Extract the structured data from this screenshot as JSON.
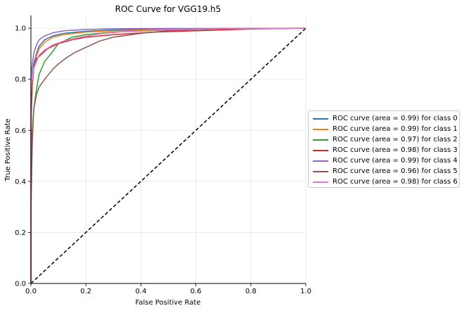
{
  "chart_data": {
    "type": "line",
    "title": "ROC Curve for VGG19.h5",
    "xlabel": "False Positive Rate",
    "ylabel": "True Positive Rate",
    "xlim": [
      0,
      1
    ],
    "ylim": [
      0,
      1.05
    ],
    "x_ticks": [
      "0.0",
      "0.2",
      "0.4",
      "0.6",
      "0.8",
      "1.0"
    ],
    "y_ticks": [
      "0.0",
      "0.2",
      "0.4",
      "0.6",
      "0.8",
      "1.0"
    ],
    "grid": true,
    "legend_position": "center-right-outside",
    "diagonal": {
      "style": "dashed",
      "color": "#000000",
      "x": [
        0,
        1
      ],
      "y": [
        0,
        1
      ]
    },
    "series": [
      {
        "name": "ROC curve (area = 0.99) for class 0",
        "color": "#1f77b4",
        "x": [
          0,
          0.0,
          0.005,
          0.01,
          0.02,
          0.03,
          0.05,
          0.08,
          0.12,
          0.2,
          0.3,
          0.5,
          0.7,
          1.0
        ],
        "y": [
          0,
          0.7,
          0.8,
          0.86,
          0.9,
          0.93,
          0.955,
          0.97,
          0.98,
          0.988,
          0.993,
          0.997,
          0.999,
          1.0
        ]
      },
      {
        "name": "ROC curve (area = 0.99) for class 1",
        "color": "#ff7f0e",
        "x": [
          0,
          0.0,
          0.005,
          0.01,
          0.02,
          0.03,
          0.05,
          0.08,
          0.12,
          0.2,
          0.3,
          0.5,
          0.7,
          1.0
        ],
        "y": [
          0,
          0.6,
          0.78,
          0.84,
          0.89,
          0.92,
          0.945,
          0.965,
          0.975,
          0.985,
          0.99,
          0.995,
          0.998,
          1.0
        ]
      },
      {
        "name": "ROC curve (area = 0.97) for class 2",
        "color": "#2ca02c",
        "x": [
          0,
          0.0,
          0.005,
          0.01,
          0.02,
          0.03,
          0.05,
          0.08,
          0.1,
          0.15,
          0.2,
          0.3,
          0.5,
          0.7,
          1.0
        ],
        "y": [
          0,
          0.5,
          0.6,
          0.68,
          0.76,
          0.82,
          0.87,
          0.91,
          0.94,
          0.965,
          0.975,
          0.985,
          0.993,
          0.997,
          1.0
        ]
      },
      {
        "name": "ROC curve (area = 0.98) for class 3",
        "color": "#d62728",
        "x": [
          0,
          0.0,
          0.005,
          0.01,
          0.02,
          0.04,
          0.06,
          0.1,
          0.15,
          0.2,
          0.3,
          0.45,
          0.6,
          0.8,
          1.0
        ],
        "y": [
          0,
          0.65,
          0.78,
          0.84,
          0.88,
          0.9,
          0.92,
          0.94,
          0.955,
          0.965,
          0.975,
          0.985,
          0.99,
          0.997,
          1.0
        ]
      },
      {
        "name": "ROC curve (area = 0.99) for class 4",
        "color": "#9467bd",
        "x": [
          0,
          0.0,
          0.005,
          0.01,
          0.02,
          0.03,
          0.05,
          0.08,
          0.12,
          0.2,
          0.3,
          0.5,
          1.0
        ],
        "y": [
          0,
          0.8,
          0.86,
          0.9,
          0.935,
          0.955,
          0.97,
          0.982,
          0.99,
          0.995,
          0.998,
          0.999,
          1.0
        ]
      },
      {
        "name": "ROC curve (area = 0.96) for class 5",
        "color": "#8c564b",
        "x": [
          0,
          0.0,
          0.005,
          0.01,
          0.02,
          0.03,
          0.05,
          0.08,
          0.1,
          0.13,
          0.16,
          0.2,
          0.25,
          0.3,
          0.4,
          0.5,
          0.6,
          0.7,
          1.0
        ],
        "y": [
          0,
          0.28,
          0.55,
          0.68,
          0.74,
          0.77,
          0.8,
          0.84,
          0.86,
          0.885,
          0.905,
          0.925,
          0.95,
          0.965,
          0.98,
          0.99,
          0.995,
          0.998,
          1.0
        ]
      },
      {
        "name": "ROC curve (area = 0.98) for class 6",
        "color": "#e377c2",
        "x": [
          0,
          0.0,
          0.005,
          0.01,
          0.02,
          0.03,
          0.05,
          0.08,
          0.12,
          0.18,
          0.25,
          0.35,
          0.5,
          0.7,
          1.0
        ],
        "y": [
          0,
          0.75,
          0.8,
          0.84,
          0.87,
          0.895,
          0.915,
          0.935,
          0.95,
          0.965,
          0.978,
          0.988,
          0.994,
          0.998,
          1.0
        ]
      }
    ]
  }
}
